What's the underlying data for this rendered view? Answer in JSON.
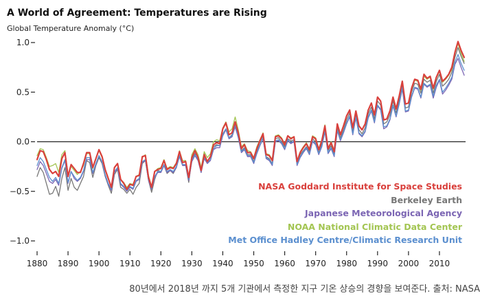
{
  "caption": "80년에서 2018년 까지 5개 기관에서 측정한 지구 기온 상승의 경향을 보여준다. 출처: NASA",
  "chart_data": {
    "type": "line",
    "title": "A World of Agreement: Temperatures are Rising",
    "ylabel": "Global Temperature Anomaly (°C)",
    "xlabel": "",
    "xlim": [
      1880,
      2018
    ],
    "ylim": [
      -1.0,
      1.0
    ],
    "x_ticks": [
      1880,
      1890,
      1900,
      1910,
      1920,
      1930,
      1940,
      1950,
      1960,
      1970,
      1980,
      1990,
      2000,
      2010
    ],
    "x_tick_labels": [
      "1880",
      "1890",
      "1900",
      "1910",
      "1920",
      "1930",
      "1940",
      "1950",
      "1960",
      "1970",
      "1980",
      "1990",
      "2000",
      "2010"
    ],
    "y_ticks": [
      1.0,
      0.5,
      0.0,
      -0.5,
      -1.0
    ],
    "y_tick_labels": [
      "1.0",
      "0.5",
      "0.0",
      "−0.5",
      "−1.0"
    ],
    "grid": false,
    "zero_line": true,
    "legend_position": "bottom-right",
    "years": [
      1880,
      1881,
      1882,
      1883,
      1884,
      1885,
      1886,
      1887,
      1888,
      1889,
      1890,
      1891,
      1892,
      1893,
      1894,
      1895,
      1896,
      1897,
      1898,
      1899,
      1900,
      1901,
      1902,
      1903,
      1904,
      1905,
      1906,
      1907,
      1908,
      1909,
      1910,
      1911,
      1912,
      1913,
      1914,
      1915,
      1916,
      1917,
      1918,
      1919,
      1920,
      1921,
      1922,
      1923,
      1924,
      1925,
      1926,
      1927,
      1928,
      1929,
      1930,
      1931,
      1932,
      1933,
      1934,
      1935,
      1936,
      1937,
      1938,
      1939,
      1940,
      1941,
      1942,
      1943,
      1944,
      1945,
      1946,
      1947,
      1948,
      1949,
      1950,
      1951,
      1952,
      1953,
      1954,
      1955,
      1956,
      1957,
      1958,
      1959,
      1960,
      1961,
      1962,
      1963,
      1964,
      1965,
      1966,
      1967,
      1968,
      1969,
      1970,
      1971,
      1972,
      1973,
      1974,
      1975,
      1976,
      1977,
      1978,
      1979,
      1980,
      1981,
      1982,
      1983,
      1984,
      1985,
      1986,
      1987,
      1988,
      1989,
      1990,
      1991,
      1992,
      1993,
      1994,
      1995,
      1996,
      1997,
      1998,
      1999,
      2000,
      2001,
      2002,
      2003,
      2004,
      2005,
      2006,
      2007,
      2008,
      2009,
      2010,
      2011,
      2012,
      2013,
      2014,
      2015,
      2016,
      2017,
      2018
    ],
    "series": [
      {
        "name": "NASA Goddard Institute for Space Studies",
        "color": "#d9403c",
        "values": [
          -0.18,
          -0.09,
          -0.1,
          -0.18,
          -0.28,
          -0.32,
          -0.3,
          -0.35,
          -0.17,
          -0.11,
          -0.35,
          -0.23,
          -0.27,
          -0.31,
          -0.31,
          -0.22,
          -0.11,
          -0.11,
          -0.26,
          -0.17,
          -0.08,
          -0.15,
          -0.28,
          -0.37,
          -0.46,
          -0.26,
          -0.22,
          -0.38,
          -0.42,
          -0.48,
          -0.43,
          -0.44,
          -0.35,
          -0.34,
          -0.15,
          -0.14,
          -0.36,
          -0.46,
          -0.3,
          -0.28,
          -0.27,
          -0.19,
          -0.28,
          -0.26,
          -0.27,
          -0.22,
          -0.1,
          -0.21,
          -0.2,
          -0.36,
          -0.16,
          -0.09,
          -0.16,
          -0.29,
          -0.13,
          -0.2,
          -0.15,
          -0.03,
          -0.01,
          -0.02,
          0.13,
          0.19,
          0.07,
          0.09,
          0.2,
          0.09,
          -0.07,
          -0.03,
          -0.11,
          -0.11,
          -0.17,
          -0.07,
          0.01,
          0.08,
          -0.13,
          -0.14,
          -0.19,
          0.05,
          0.06,
          0.03,
          -0.03,
          0.06,
          0.03,
          0.05,
          -0.2,
          -0.11,
          -0.06,
          -0.02,
          -0.08,
          0.05,
          0.03,
          -0.08,
          0.01,
          0.16,
          -0.07,
          -0.01,
          -0.1,
          0.18,
          0.07,
          0.16,
          0.26,
          0.32,
          0.14,
          0.31,
          0.16,
          0.12,
          0.18,
          0.32,
          0.39,
          0.27,
          0.45,
          0.41,
          0.22,
          0.23,
          0.31,
          0.45,
          0.33,
          0.46,
          0.61,
          0.38,
          0.39,
          0.54,
          0.63,
          0.62,
          0.53,
          0.68,
          0.64,
          0.66,
          0.54,
          0.65,
          0.72,
          0.61,
          0.64,
          0.68,
          0.75,
          0.9,
          1.01,
          0.92,
          0.85
        ]
      },
      {
        "name": "Berkeley Earth",
        "color": "#777777",
        "values": [
          -0.35,
          -0.26,
          -0.31,
          -0.42,
          -0.53,
          -0.52,
          -0.45,
          -0.55,
          -0.37,
          -0.26,
          -0.49,
          -0.37,
          -0.46,
          -0.49,
          -0.42,
          -0.35,
          -0.19,
          -0.21,
          -0.36,
          -0.24,
          -0.16,
          -0.22,
          -0.35,
          -0.44,
          -0.52,
          -0.33,
          -0.28,
          -0.46,
          -0.48,
          -0.52,
          -0.48,
          -0.53,
          -0.46,
          -0.42,
          -0.22,
          -0.19,
          -0.39,
          -0.51,
          -0.38,
          -0.29,
          -0.3,
          -0.24,
          -0.32,
          -0.29,
          -0.32,
          -0.26,
          -0.14,
          -0.23,
          -0.24,
          -0.41,
          -0.18,
          -0.12,
          -0.15,
          -0.31,
          -0.12,
          -0.2,
          -0.16,
          -0.05,
          -0.03,
          -0.04,
          0.08,
          0.13,
          0.04,
          0.07,
          0.17,
          0.05,
          -0.09,
          -0.06,
          -0.13,
          -0.13,
          -0.2,
          -0.09,
          0.0,
          0.06,
          -0.15,
          -0.17,
          -0.22,
          0.03,
          0.04,
          0.0,
          -0.05,
          0.03,
          0.01,
          0.02,
          -0.22,
          -0.13,
          -0.09,
          -0.05,
          -0.1,
          0.03,
          0.0,
          -0.11,
          -0.02,
          0.13,
          -0.09,
          -0.04,
          -0.12,
          0.14,
          0.04,
          0.12,
          0.22,
          0.29,
          0.1,
          0.28,
          0.12,
          0.08,
          0.14,
          0.28,
          0.35,
          0.23,
          0.41,
          0.37,
          0.18,
          0.2,
          0.27,
          0.41,
          0.29,
          0.42,
          0.58,
          0.34,
          0.35,
          0.5,
          0.59,
          0.58,
          0.49,
          0.63,
          0.6,
          0.62,
          0.49,
          0.61,
          0.68,
          0.56,
          0.59,
          0.63,
          0.7,
          0.85,
          0.95,
          0.86,
          0.79
        ]
      },
      {
        "name": "Japanese Meteorological Agency",
        "color": "#7b65b3",
        "values": [
          -0.28,
          -0.2,
          -0.24,
          -0.32,
          -0.4,
          -0.42,
          -0.38,
          -0.44,
          -0.27,
          -0.19,
          -0.42,
          -0.3,
          -0.37,
          -0.4,
          -0.37,
          -0.3,
          -0.18,
          -0.18,
          -0.32,
          -0.23,
          -0.14,
          -0.21,
          -0.34,
          -0.43,
          -0.49,
          -0.31,
          -0.27,
          -0.43,
          -0.46,
          -0.5,
          -0.46,
          -0.48,
          -0.4,
          -0.38,
          -0.21,
          -0.19,
          -0.39,
          -0.48,
          -0.36,
          -0.31,
          -0.31,
          -0.24,
          -0.31,
          -0.29,
          -0.31,
          -0.26,
          -0.15,
          -0.24,
          -0.24,
          -0.39,
          -0.2,
          -0.14,
          -0.19,
          -0.31,
          -0.17,
          -0.22,
          -0.19,
          -0.08,
          -0.06,
          -0.06,
          0.06,
          0.12,
          0.03,
          0.05,
          0.15,
          0.04,
          -0.11,
          -0.08,
          -0.15,
          -0.15,
          -0.22,
          -0.12,
          -0.04,
          0.03,
          -0.17,
          -0.19,
          -0.24,
          0.0,
          0.01,
          -0.02,
          -0.08,
          0.01,
          -0.02,
          0.0,
          -0.24,
          -0.16,
          -0.11,
          -0.07,
          -0.13,
          0.0,
          -0.03,
          -0.13,
          -0.05,
          0.1,
          -0.12,
          -0.07,
          -0.15,
          0.11,
          0.01,
          0.09,
          0.18,
          0.25,
          0.07,
          0.24,
          0.08,
          0.05,
          0.1,
          0.24,
          0.31,
          0.19,
          0.36,
          0.32,
          0.13,
          0.15,
          0.22,
          0.36,
          0.25,
          0.38,
          0.53,
          0.3,
          0.31,
          0.45,
          0.54,
          0.53,
          0.44,
          0.58,
          0.55,
          0.57,
          0.44,
          0.55,
          0.62,
          0.48,
          0.52,
          0.57,
          0.63,
          0.78,
          0.84,
          0.75,
          0.67
        ]
      },
      {
        "name": "NOAA National Climatic Data Center",
        "color": "#a3c552",
        "values": [
          -0.14,
          -0.07,
          -0.08,
          -0.16,
          -0.25,
          -0.24,
          -0.22,
          -0.31,
          -0.13,
          -0.09,
          -0.33,
          -0.25,
          -0.29,
          -0.33,
          -0.3,
          -0.24,
          -0.12,
          -0.12,
          -0.27,
          -0.17,
          -0.09,
          -0.16,
          -0.29,
          -0.38,
          -0.45,
          -0.26,
          -0.22,
          -0.38,
          -0.41,
          -0.46,
          -0.42,
          -0.43,
          -0.35,
          -0.33,
          -0.16,
          -0.13,
          -0.34,
          -0.45,
          -0.3,
          -0.27,
          -0.26,
          -0.18,
          -0.27,
          -0.25,
          -0.26,
          -0.21,
          -0.09,
          -0.19,
          -0.19,
          -0.35,
          -0.13,
          -0.07,
          -0.13,
          -0.26,
          -0.1,
          -0.16,
          -0.12,
          0.0,
          0.02,
          0.01,
          0.14,
          0.2,
          0.1,
          0.13,
          0.25,
          0.12,
          -0.05,
          -0.02,
          -0.09,
          -0.1,
          -0.16,
          -0.05,
          0.02,
          0.09,
          -0.12,
          -0.13,
          -0.18,
          0.06,
          0.07,
          0.04,
          -0.02,
          0.06,
          0.04,
          0.05,
          -0.19,
          -0.1,
          -0.05,
          -0.01,
          -0.07,
          0.06,
          0.04,
          -0.07,
          0.02,
          0.17,
          -0.06,
          0.0,
          -0.09,
          0.18,
          0.07,
          0.16,
          0.26,
          0.32,
          0.14,
          0.31,
          0.16,
          0.12,
          0.18,
          0.32,
          0.39,
          0.27,
          0.45,
          0.41,
          0.22,
          0.23,
          0.31,
          0.45,
          0.33,
          0.46,
          0.61,
          0.38,
          0.39,
          0.53,
          0.62,
          0.61,
          0.52,
          0.66,
          0.63,
          0.65,
          0.53,
          0.64,
          0.71,
          0.6,
          0.63,
          0.67,
          0.73,
          0.89,
          0.99,
          0.89,
          0.81
        ]
      },
      {
        "name": "Met Office Hadley Centre/Climatic Research Unit",
        "color": "#5b8fcf",
        "values": [
          -0.24,
          -0.16,
          -0.2,
          -0.28,
          -0.36,
          -0.4,
          -0.36,
          -0.42,
          -0.26,
          -0.18,
          -0.41,
          -0.3,
          -0.35,
          -0.39,
          -0.36,
          -0.29,
          -0.16,
          -0.16,
          -0.31,
          -0.22,
          -0.14,
          -0.2,
          -0.33,
          -0.42,
          -0.48,
          -0.3,
          -0.26,
          -0.42,
          -0.45,
          -0.49,
          -0.45,
          -0.47,
          -0.39,
          -0.37,
          -0.2,
          -0.18,
          -0.38,
          -0.47,
          -0.35,
          -0.3,
          -0.3,
          -0.23,
          -0.3,
          -0.28,
          -0.3,
          -0.25,
          -0.14,
          -0.23,
          -0.23,
          -0.38,
          -0.19,
          -0.13,
          -0.18,
          -0.3,
          -0.16,
          -0.21,
          -0.18,
          -0.07,
          -0.04,
          -0.04,
          0.07,
          0.13,
          0.04,
          0.06,
          0.17,
          0.05,
          -0.1,
          -0.07,
          -0.14,
          -0.14,
          -0.21,
          -0.11,
          -0.03,
          0.04,
          -0.16,
          -0.18,
          -0.23,
          0.01,
          0.02,
          -0.01,
          -0.07,
          0.02,
          -0.01,
          0.01,
          -0.23,
          -0.15,
          -0.1,
          -0.06,
          -0.12,
          0.01,
          -0.02,
          -0.12,
          -0.04,
          0.11,
          -0.11,
          -0.06,
          -0.14,
          0.12,
          0.02,
          0.1,
          0.19,
          0.26,
          0.08,
          0.25,
          0.09,
          0.06,
          0.11,
          0.25,
          0.32,
          0.2,
          0.37,
          0.33,
          0.15,
          0.16,
          0.23,
          0.37,
          0.26,
          0.39,
          0.55,
          0.31,
          0.32,
          0.46,
          0.55,
          0.54,
          0.45,
          0.59,
          0.56,
          0.58,
          0.46,
          0.57,
          0.63,
          0.5,
          0.54,
          0.59,
          0.65,
          0.8,
          0.88,
          0.79,
          0.72
        ]
      }
    ]
  }
}
